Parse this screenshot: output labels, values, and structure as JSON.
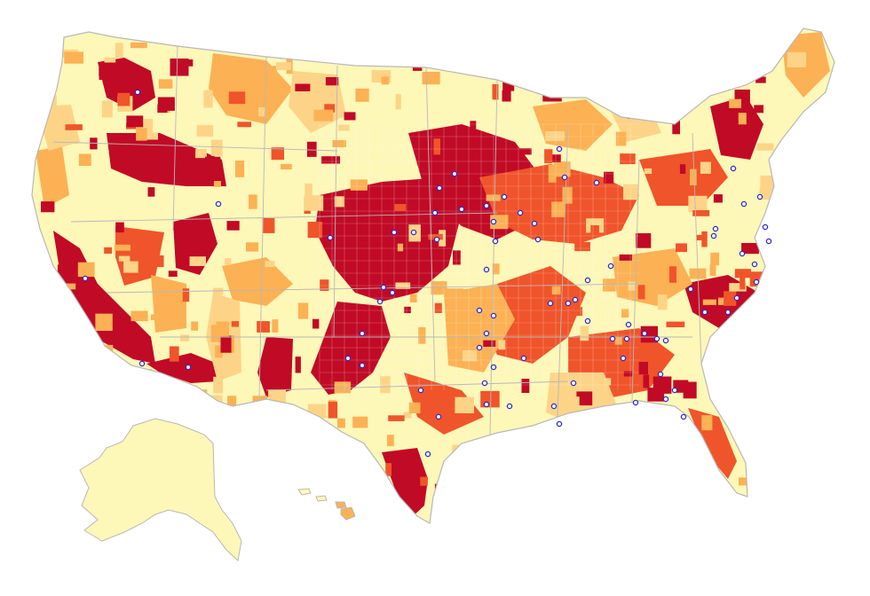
{
  "map": {
    "colors": {
      "background": "#ffffff",
      "land_base": "#fdf7b8",
      "class_1": "#fdd487",
      "class_2": "#fcb154",
      "class_3": "#f0542a",
      "class_4": "#c10a26",
      "border": "#b8b8b8",
      "marker_stroke": "#2b2bd6",
      "marker_fill": "#ffffff"
    },
    "layers": [
      "contiguous-us",
      "alaska",
      "hawaii"
    ],
    "markers_shown": true
  }
}
